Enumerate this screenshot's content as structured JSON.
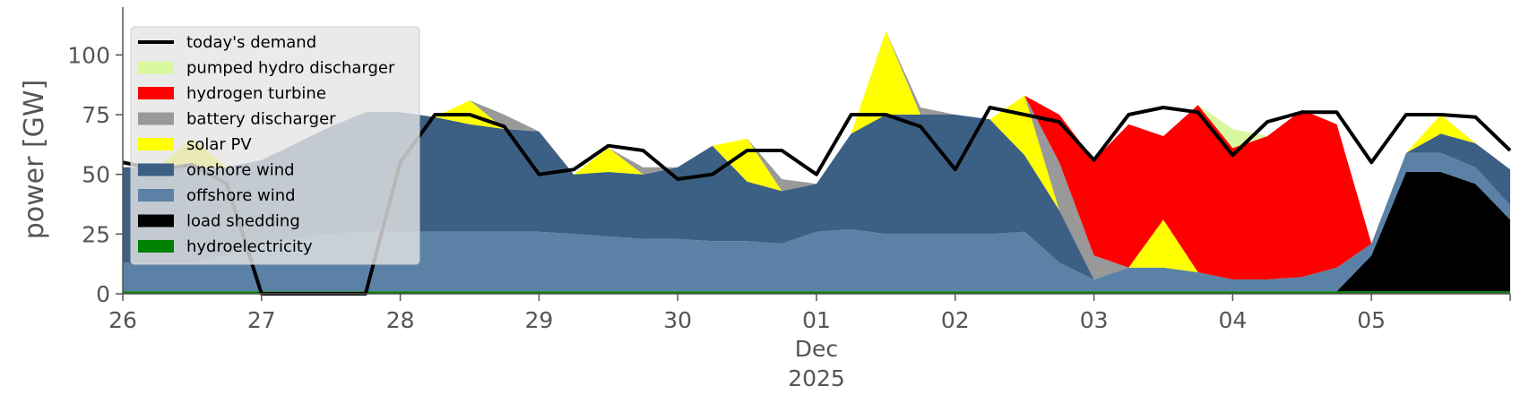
{
  "chart_data": {
    "type": "area",
    "ylabel": "power [GW]",
    "ylim": [
      0,
      120
    ],
    "yticks": [
      0,
      25,
      50,
      75,
      100
    ],
    "xlim": [
      "2025-11-26T00:00",
      "2025-12-06T00:00"
    ],
    "xticks": [
      {
        "x": "2025-11-26T00:00",
        "label": "26"
      },
      {
        "x": "2025-11-27T00:00",
        "label": "27"
      },
      {
        "x": "2025-11-28T00:00",
        "label": "28"
      },
      {
        "x": "2025-11-29T00:00",
        "label": "29"
      },
      {
        "x": "2025-11-30T00:00",
        "label": "30"
      },
      {
        "x": "2025-12-01T00:00",
        "label": "01"
      },
      {
        "x": "2025-12-02T00:00",
        "label": "02"
      },
      {
        "x": "2025-12-03T00:00",
        "label": "03"
      },
      {
        "x": "2025-12-04T00:00",
        "label": "04"
      },
      {
        "x": "2025-12-05T00:00",
        "label": "05"
      }
    ],
    "xlabel_sub": [
      "Dec",
      "2025"
    ],
    "grid": false,
    "legend_position": "upper-left",
    "x": [
      "2025-11-26T00:00",
      "2025-11-26T06:00",
      "2025-11-26T12:00",
      "2025-11-26T18:00",
      "2025-11-27T00:00",
      "2025-11-27T06:00",
      "2025-11-27T12:00",
      "2025-11-27T18:00",
      "2025-11-28T00:00",
      "2025-11-28T06:00",
      "2025-11-28T12:00",
      "2025-11-28T18:00",
      "2025-11-29T00:00",
      "2025-11-29T06:00",
      "2025-11-29T12:00",
      "2025-11-29T18:00",
      "2025-11-30T00:00",
      "2025-11-30T06:00",
      "2025-11-30T12:00",
      "2025-11-30T18:00",
      "2025-12-01T00:00",
      "2025-12-01T06:00",
      "2025-12-01T12:00",
      "2025-12-01T18:00",
      "2025-12-02T00:00",
      "2025-12-02T06:00",
      "2025-12-02T12:00",
      "2025-12-02T18:00",
      "2025-12-03T00:00",
      "2025-12-03T06:00",
      "2025-12-03T12:00",
      "2025-12-03T18:00",
      "2025-12-04T00:00",
      "2025-12-04T06:00",
      "2025-12-04T12:00",
      "2025-12-04T18:00",
      "2025-12-05T00:00",
      "2025-12-05T06:00",
      "2025-12-05T12:00",
      "2025-12-05T18:00",
      "2025-12-06T00:00"
    ],
    "series": [
      {
        "name": "hydroelectricity",
        "color": "#008000",
        "values": [
          1,
          1,
          1,
          1,
          1,
          1,
          1,
          1,
          1,
          1,
          1,
          1,
          1,
          1,
          1,
          1,
          1,
          1,
          1,
          1,
          1,
          1,
          1,
          1,
          1,
          1,
          1,
          1,
          1,
          1,
          1,
          1,
          1,
          1,
          1,
          1,
          1,
          1,
          1,
          1,
          1
        ]
      },
      {
        "name": "load shedding",
        "color": "#000000",
        "values": [
          0,
          0,
          0,
          0,
          0,
          0,
          0,
          0,
          0,
          0,
          0,
          0,
          0,
          0,
          0,
          0,
          0,
          0,
          0,
          0,
          0,
          0,
          0,
          0,
          0,
          0,
          0,
          0,
          0,
          0,
          0,
          0,
          0,
          0,
          0,
          0,
          15,
          50,
          50,
          45,
          30
        ]
      },
      {
        "name": "offshore wind",
        "color": "#5b82a6",
        "values": [
          12,
          12,
          12,
          15,
          20,
          22,
          24,
          25,
          25,
          25,
          25,
          25,
          25,
          24,
          23,
          22,
          22,
          21,
          21,
          20,
          25,
          26,
          24,
          24,
          24,
          24,
          25,
          12,
          5,
          10,
          10,
          8,
          5,
          5,
          6,
          10,
          5,
          8,
          8,
          7,
          6
        ]
      },
      {
        "name": "onshore wind",
        "color": "#3c6084",
        "values": [
          40,
          40,
          40,
          37,
          35,
          40,
          45,
          50,
          50,
          48,
          45,
          43,
          42,
          25,
          27,
          27,
          30,
          40,
          25,
          22,
          20,
          40,
          50,
          50,
          50,
          48,
          32,
          22,
          0,
          0,
          0,
          0,
          0,
          0,
          0,
          0,
          0,
          0,
          8,
          10,
          15
        ]
      },
      {
        "name": "solar PV",
        "color": "#ffff00",
        "values": [
          0,
          0,
          12,
          0,
          0,
          0,
          0,
          0,
          0,
          0,
          10,
          0,
          0,
          0,
          10,
          0,
          0,
          0,
          18,
          0,
          0,
          0,
          35,
          0,
          0,
          0,
          25,
          0,
          0,
          0,
          20,
          0,
          0,
          0,
          0,
          0,
          0,
          0,
          8,
          0,
          0
        ]
      },
      {
        "name": "battery discharger",
        "color": "#999999",
        "values": [
          0,
          0,
          0,
          0,
          0,
          0,
          0,
          0,
          0,
          0,
          0,
          6,
          0,
          0,
          0,
          3,
          0,
          0,
          0,
          5,
          0,
          0,
          0,
          3,
          0,
          0,
          0,
          20,
          10,
          0,
          0,
          0,
          0,
          0,
          0,
          0,
          0,
          0,
          0,
          0,
          0
        ]
      },
      {
        "name": "hydrogen turbine",
        "color": "#ff0000",
        "values": [
          0,
          0,
          0,
          0,
          0,
          0,
          0,
          0,
          0,
          0,
          0,
          0,
          0,
          0,
          0,
          0,
          0,
          0,
          0,
          0,
          0,
          0,
          0,
          0,
          0,
          0,
          0,
          20,
          40,
          60,
          35,
          70,
          55,
          60,
          70,
          60,
          0,
          0,
          0,
          0,
          0
        ]
      },
      {
        "name": "pumped hydro discharger",
        "color": "#d8f8a0",
        "values": [
          0,
          0,
          0,
          0,
          0,
          0,
          0,
          0,
          0,
          0,
          0,
          0,
          0,
          0,
          0,
          0,
          0,
          0,
          0,
          0,
          0,
          0,
          0,
          0,
          0,
          0,
          0,
          0,
          0,
          0,
          0,
          0,
          8,
          0,
          0,
          0,
          0,
          0,
          0,
          0,
          0
        ]
      }
    ],
    "demand": {
      "name": "today's demand",
      "color": "#000000",
      "values": [
        55,
        52,
        54,
        46,
        0,
        0,
        0,
        0,
        55,
        75,
        75,
        70,
        50,
        52,
        62,
        60,
        48,
        50,
        60,
        60,
        50,
        75,
        75,
        70,
        52,
        78,
        75,
        72,
        56,
        75,
        78,
        76,
        58,
        72,
        76,
        76,
        55,
        75,
        75,
        74,
        60
      ]
    },
    "legend": [
      {
        "label": "today's demand",
        "color": "#000000",
        "kind": "line"
      },
      {
        "label": "pumped hydro discharger",
        "color": "#d8f8a0",
        "kind": "patch"
      },
      {
        "label": "hydrogen turbine",
        "color": "#ff0000",
        "kind": "patch"
      },
      {
        "label": "battery discharger",
        "color": "#999999",
        "kind": "patch"
      },
      {
        "label": "solar PV",
        "color": "#ffff00",
        "kind": "patch"
      },
      {
        "label": "onshore wind",
        "color": "#3c6084",
        "kind": "patch"
      },
      {
        "label": "offshore wind",
        "color": "#5b82a6",
        "kind": "patch"
      },
      {
        "label": "load shedding",
        "color": "#000000",
        "kind": "patch"
      },
      {
        "label": "hydroelectricity",
        "color": "#008000",
        "kind": "patch"
      }
    ]
  }
}
